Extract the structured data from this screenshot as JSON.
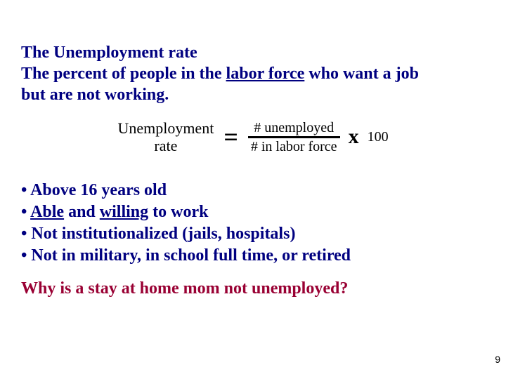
{
  "colors": {
    "text_primary": "#000080",
    "text_formula": "#000000",
    "text_question": "#990033",
    "background": "#ffffff",
    "fraction_bar": "#000000"
  },
  "fontsize": {
    "heading": 24,
    "bullets": 24,
    "question": 24,
    "formula_label": 22,
    "fraction_terms": 20,
    "equals": 36,
    "mult": 30,
    "hundred": 20,
    "page_num": 14
  },
  "heading": {
    "line1": "The Unemployment rate",
    "line2a": "The percent of people in the ",
    "line2_underlined": "labor force",
    "line2b": " who want a job",
    "line3": "but are not working."
  },
  "formula": {
    "label_line1": "Unemployment",
    "label_line2": "rate",
    "equals": "=",
    "numerator": "# unemployed",
    "denominator": "# in labor force",
    "multiply": "x",
    "hundred": "100"
  },
  "bullets": [
    {
      "pre": "• Above 16 years old"
    },
    {
      "pre": "• ",
      "u1": "Able",
      "mid": " and ",
      "u2": "willing",
      "post": " to work"
    },
    {
      "pre": "• Not institutionalized (jails, hospitals)"
    },
    {
      "pre": "• Not in military, in school full time, or retired"
    }
  ],
  "question": "Why is a stay at home mom not unemployed?",
  "page_number": "9"
}
